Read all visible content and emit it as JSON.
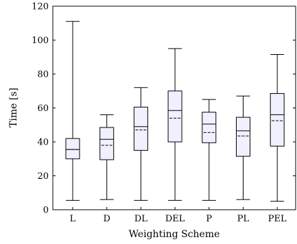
{
  "chart_data": {
    "type": "box",
    "title": "",
    "xlabel": "Weighting Scheme",
    "ylabel": "Time [s]",
    "ylim": [
      0,
      120
    ],
    "yticks": [
      0,
      20,
      40,
      60,
      80,
      100,
      120
    ],
    "grid": false,
    "categories": [
      "L",
      "D",
      "DL",
      "DEL",
      "P",
      "PL",
      "PEL"
    ],
    "boxes": [
      {
        "label": "L",
        "min": 5.5,
        "q1": 30.0,
        "median": 35.5,
        "mean": 35.5,
        "q3": 42.0,
        "max": 111.0
      },
      {
        "label": "D",
        "min": 6.0,
        "q1": 29.5,
        "median": 41.5,
        "mean": 38.0,
        "q3": 48.5,
        "max": 56.0
      },
      {
        "label": "DL",
        "min": 5.5,
        "q1": 35.0,
        "median": 49.0,
        "mean": 47.0,
        "q3": 60.5,
        "max": 72.0
      },
      {
        "label": "DEL",
        "min": 5.5,
        "q1": 40.0,
        "median": 58.5,
        "mean": 54.0,
        "q3": 70.0,
        "max": 95.0
      },
      {
        "label": "P",
        "min": 5.5,
        "q1": 39.5,
        "median": 50.5,
        "mean": 45.5,
        "q3": 57.5,
        "max": 65.0
      },
      {
        "label": "PL",
        "min": 6.0,
        "q1": 31.5,
        "median": 46.5,
        "mean": 43.5,
        "q3": 54.5,
        "max": 67.0
      },
      {
        "label": "PEL",
        "min": 5.0,
        "q1": 37.5,
        "median": 56.0,
        "mean": 52.5,
        "q3": 68.5,
        "max": 91.5
      }
    ],
    "colors": {
      "box_fill": "#f0f0ff",
      "stroke": "#000000"
    }
  }
}
